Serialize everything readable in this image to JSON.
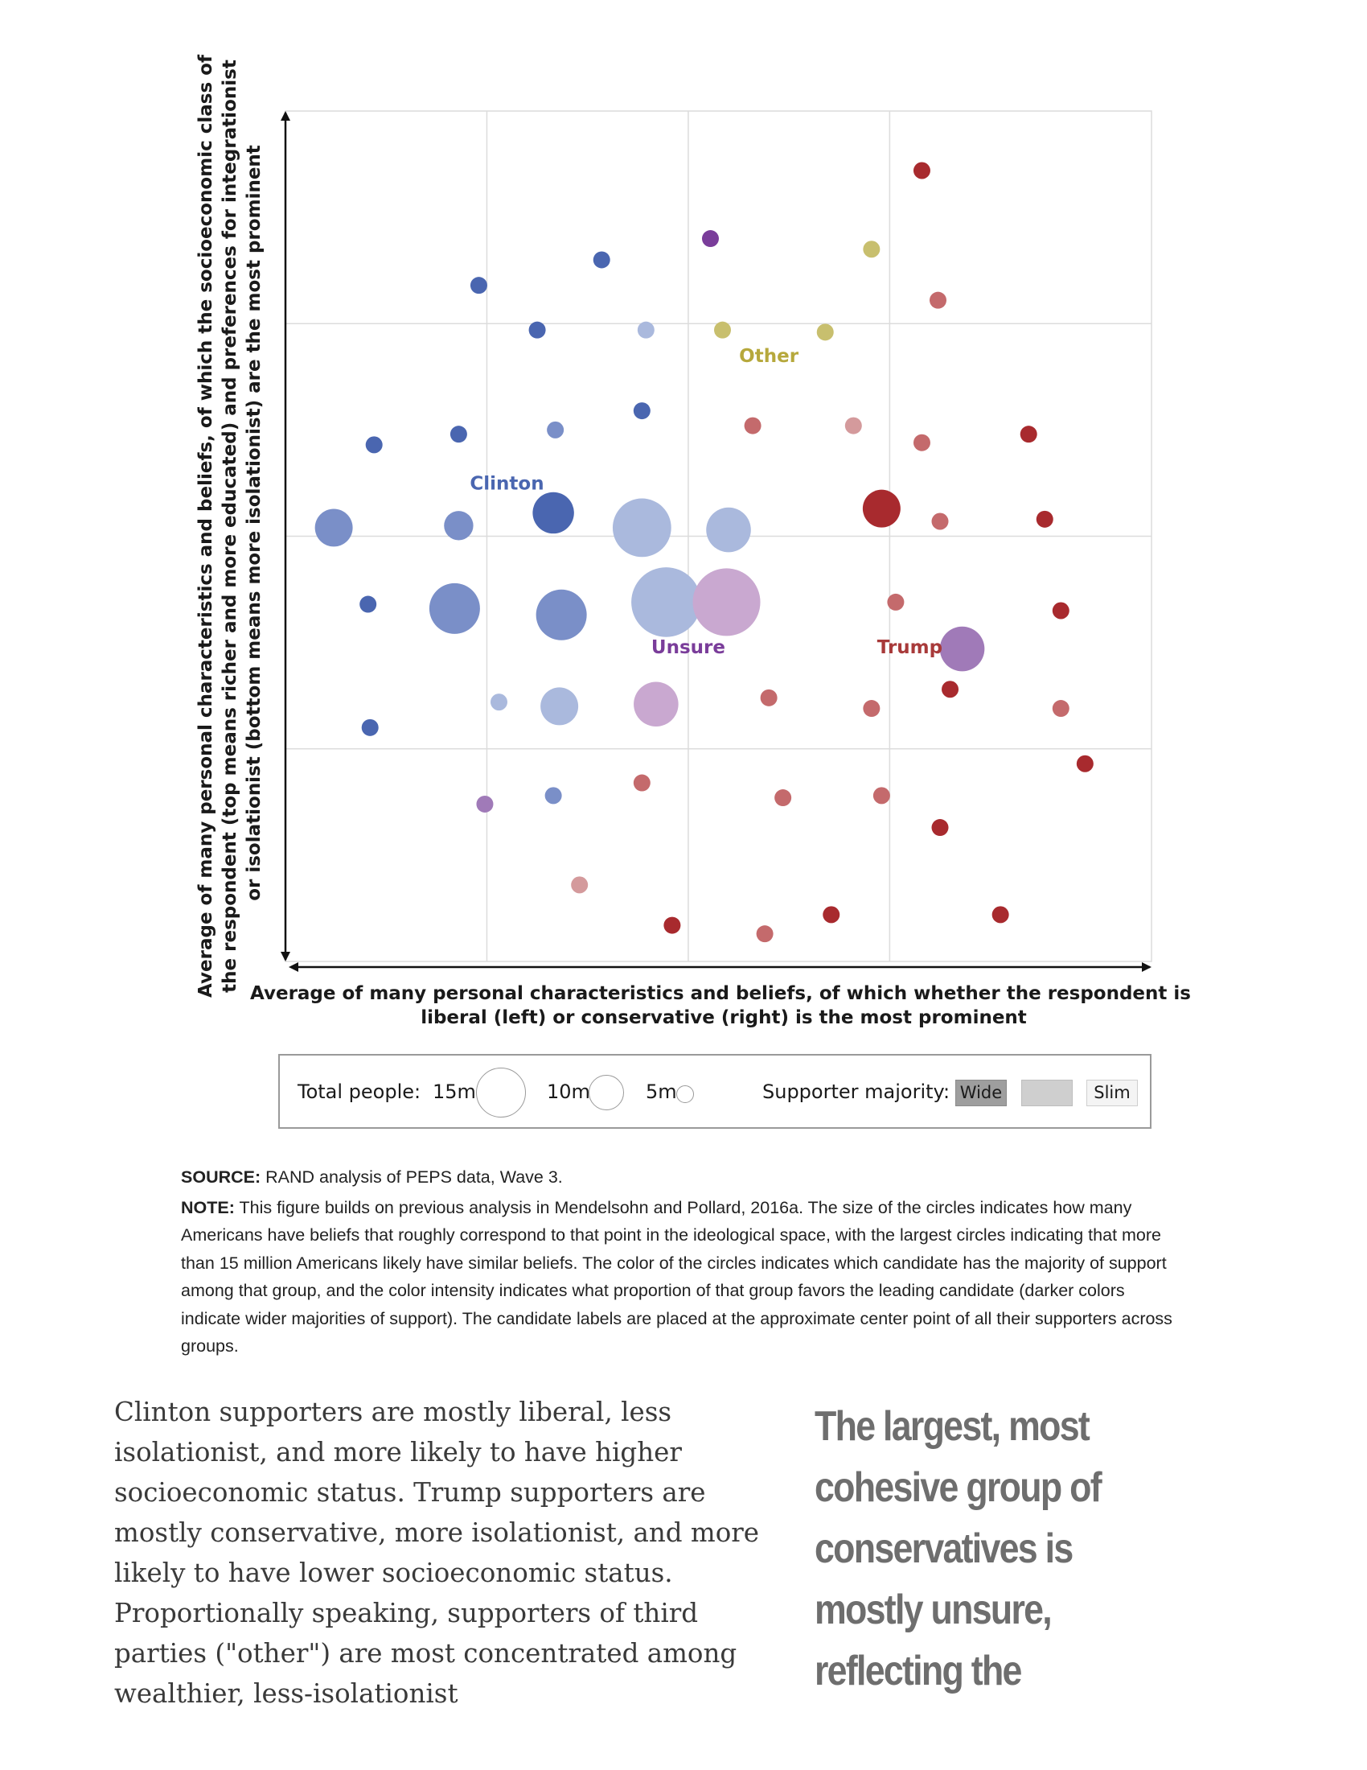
{
  "chart_data": {
    "type": "scatter",
    "xlabel": "Average of many personal characteristics and beliefs, of which whether the respondent is liberal (left) or conservative (right) is the most prominent",
    "xlabel_lines": [
      "Average of many personal characteristics and beliefs, of which whether the respondent is",
      "liberal (left) or conservative (right) is the most prominent"
    ],
    "ylabel": "Average of many personal characteristics and beliefs, of which the socioeconomic class of the respondent (top means richer and more educated) and preferences for integrationist or isolationist (bottom means more isolationist) are the most prominent",
    "ylabel_lines": [
      "Average of many personal characteristics and beliefs, of which the socioeconomic class of",
      "the respondent (top means richer and more educated) and preferences for integrationist",
      "or isolationist (bottom means more isolationist) are the most prominent"
    ],
    "xlim": [
      0,
      4.3
    ],
    "ylim": [
      0,
      4
    ],
    "grid": true,
    "candidate_labels": [
      {
        "text": "Clinton",
        "x": 1.1,
        "y": 2.22,
        "color": "#4a66b0"
      },
      {
        "text": "Other",
        "x": 2.4,
        "y": 2.82,
        "color": "#b6a83c"
      },
      {
        "text": "Unsure",
        "x": 2.0,
        "y": 1.45,
        "color": "#7a3d9a"
      },
      {
        "text": "Trump",
        "x": 3.1,
        "y": 1.45,
        "color": "#a83a3a"
      }
    ],
    "points": [
      {
        "x": 3.16,
        "y": 3.72,
        "size": 1,
        "group": "Trump",
        "majority": "wide"
      },
      {
        "x": 2.11,
        "y": 3.4,
        "size": 1,
        "group": "Unsure",
        "majority": "wide"
      },
      {
        "x": 2.91,
        "y": 3.35,
        "size": 1,
        "group": "Other",
        "majority": "medium"
      },
      {
        "x": 1.57,
        "y": 3.3,
        "size": 1,
        "group": "Clinton",
        "majority": "wide"
      },
      {
        "x": 0.96,
        "y": 3.18,
        "size": 1,
        "group": "Clinton",
        "majority": "wide"
      },
      {
        "x": 3.24,
        "y": 3.11,
        "size": 1,
        "group": "Trump",
        "majority": "medium"
      },
      {
        "x": 1.25,
        "y": 2.97,
        "size": 1,
        "group": "Clinton",
        "majority": "wide"
      },
      {
        "x": 1.79,
        "y": 2.97,
        "size": 1,
        "group": "Clinton",
        "majority": "slim"
      },
      {
        "x": 2.17,
        "y": 2.97,
        "size": 1,
        "group": "Other",
        "majority": "medium"
      },
      {
        "x": 2.68,
        "y": 2.96,
        "size": 1,
        "group": "Other",
        "majority": "medium"
      },
      {
        "x": 1.77,
        "y": 2.59,
        "size": 1,
        "group": "Clinton",
        "majority": "wide"
      },
      {
        "x": 2.32,
        "y": 2.52,
        "size": 1,
        "group": "Trump",
        "majority": "medium"
      },
      {
        "x": 2.82,
        "y": 2.52,
        "size": 1,
        "group": "Trump",
        "majority": "slim"
      },
      {
        "x": 0.86,
        "y": 2.48,
        "size": 1,
        "group": "Clinton",
        "majority": "wide"
      },
      {
        "x": 1.34,
        "y": 2.5,
        "size": 1,
        "group": "Clinton",
        "majority": "medium"
      },
      {
        "x": 3.69,
        "y": 2.48,
        "size": 1,
        "group": "Trump",
        "majority": "wide"
      },
      {
        "x": 0.44,
        "y": 2.43,
        "size": 1,
        "group": "Clinton",
        "majority": "wide"
      },
      {
        "x": 3.16,
        "y": 2.44,
        "size": 1,
        "group": "Trump",
        "majority": "medium"
      },
      {
        "x": 1.33,
        "y": 2.11,
        "size": 6,
        "group": "Clinton",
        "majority": "wide"
      },
      {
        "x": 2.96,
        "y": 2.13,
        "size": 5,
        "group": "Trump",
        "majority": "wide"
      },
      {
        "x": 0.86,
        "y": 2.05,
        "size": 3,
        "group": "Clinton",
        "majority": "medium"
      },
      {
        "x": 0.24,
        "y": 2.04,
        "size": 5,
        "group": "Clinton",
        "majority": "medium"
      },
      {
        "x": 1.77,
        "y": 2.04,
        "size": 12,
        "group": "Clinton",
        "majority": "slim"
      },
      {
        "x": 2.2,
        "y": 2.03,
        "size": 7,
        "group": "Clinton",
        "majority": "slim"
      },
      {
        "x": 3.25,
        "y": 2.07,
        "size": 1,
        "group": "Trump",
        "majority": "medium"
      },
      {
        "x": 3.77,
        "y": 2.08,
        "size": 1,
        "group": "Trump",
        "majority": "wide"
      },
      {
        "x": 0.41,
        "y": 1.68,
        "size": 1,
        "group": "Clinton",
        "majority": "wide"
      },
      {
        "x": 0.84,
        "y": 1.66,
        "size": 9,
        "group": "Clinton",
        "majority": "medium"
      },
      {
        "x": 1.37,
        "y": 1.63,
        "size": 9,
        "group": "Clinton",
        "majority": "medium"
      },
      {
        "x": 1.89,
        "y": 1.69,
        "size": 17,
        "group": "Clinton",
        "majority": "slim"
      },
      {
        "x": 2.19,
        "y": 1.69,
        "size": 16,
        "group": "Unsure",
        "majority": "slim"
      },
      {
        "x": 3.03,
        "y": 1.69,
        "size": 1,
        "group": "Trump",
        "majority": "medium"
      },
      {
        "x": 3.36,
        "y": 1.47,
        "size": 7,
        "group": "Unsure",
        "majority": "medium"
      },
      {
        "x": 3.85,
        "y": 1.65,
        "size": 1,
        "group": "Trump",
        "majority": "wide"
      },
      {
        "x": 1.06,
        "y": 1.22,
        "size": 1,
        "group": "Clinton",
        "majority": "slim"
      },
      {
        "x": 1.36,
        "y": 1.2,
        "size": 5,
        "group": "Clinton",
        "majority": "slim"
      },
      {
        "x": 1.84,
        "y": 1.21,
        "size": 7,
        "group": "Unsure",
        "majority": "slim"
      },
      {
        "x": 2.4,
        "y": 1.24,
        "size": 1,
        "group": "Trump",
        "majority": "medium"
      },
      {
        "x": 2.91,
        "y": 1.19,
        "size": 1,
        "group": "Trump",
        "majority": "medium"
      },
      {
        "x": 3.3,
        "y": 1.28,
        "size": 1,
        "group": "Trump",
        "majority": "wide"
      },
      {
        "x": 3.85,
        "y": 1.19,
        "size": 1,
        "group": "Trump",
        "majority": "medium"
      },
      {
        "x": 0.42,
        "y": 1.1,
        "size": 1,
        "group": "Clinton",
        "majority": "wide"
      },
      {
        "x": 3.97,
        "y": 0.93,
        "size": 1,
        "group": "Trump",
        "majority": "wide"
      },
      {
        "x": 1.77,
        "y": 0.84,
        "size": 1,
        "group": "Trump",
        "majority": "medium"
      },
      {
        "x": 1.33,
        "y": 0.78,
        "size": 1,
        "group": "Clinton",
        "majority": "medium"
      },
      {
        "x": 0.99,
        "y": 0.74,
        "size": 1,
        "group": "Unsure",
        "majority": "medium"
      },
      {
        "x": 2.47,
        "y": 0.77,
        "size": 1,
        "group": "Trump",
        "majority": "medium"
      },
      {
        "x": 2.96,
        "y": 0.78,
        "size": 1,
        "group": "Trump",
        "majority": "medium"
      },
      {
        "x": 3.25,
        "y": 0.63,
        "size": 1,
        "group": "Trump",
        "majority": "wide"
      },
      {
        "x": 1.46,
        "y": 0.36,
        "size": 1,
        "group": "Trump",
        "majority": "slim"
      },
      {
        "x": 1.92,
        "y": 0.17,
        "size": 1,
        "group": "Trump",
        "majority": "wide"
      },
      {
        "x": 2.71,
        "y": 0.22,
        "size": 1,
        "group": "Trump",
        "majority": "wide"
      },
      {
        "x": 3.55,
        "y": 0.22,
        "size": 1,
        "group": "Trump",
        "majority": "wide"
      },
      {
        "x": 2.38,
        "y": 0.13,
        "size": 1,
        "group": "Trump",
        "majority": "medium"
      }
    ],
    "colors": {
      "Clinton": {
        "wide": "#4a66b0",
        "medium": "#7a8fc8",
        "slim": "#aab9dd"
      },
      "Trump": {
        "wide": "#a82a2e",
        "medium": "#c46a6c",
        "slim": "#d49a9c"
      },
      "Unsure": {
        "wide": "#7a3d9a",
        "medium": "#a07ab8",
        "slim": "#c9a8d0"
      },
      "Other": {
        "wide": "#a89a2c",
        "medium": "#c8bf6e",
        "slim": "#ddd8a8"
      }
    },
    "legend": {
      "total_label": "Total people:",
      "sizes": [
        "15m",
        "10m",
        "5m"
      ],
      "majority_label": "Supporter majority:",
      "majority_levels": [
        "Wide",
        "",
        "Slim"
      ],
      "placement": "bottom"
    }
  },
  "notes": {
    "source_label": "SOURCE:",
    "source_text": "RAND analysis of PEPS data, Wave 3.",
    "note_label": "NOTE:",
    "note_text": "This figure builds on previous analysis in Mendelsohn and Pollard, 2016a. The size of the circles indicates how many Americans have beliefs that roughly correspond to that point in the ideological space, with the largest circles indicating that more than 15 million Americans likely have similar beliefs. The color of the circles indicates which candidate has the majority of support among that group, and the color intensity indicates what proportion of that group favors the leading candidate (darker colors indicate wider majorities of support). The candidate labels are placed at the approximate center point of all their supporters across groups."
  },
  "body_text": "Clinton supporters are mostly liberal, less isolationist, and more likely to have higher socioeconomic status. Trump supporters are mostly conservative, more isolationist, and more likely to have lower socioeconomic status. Proportionally speaking, supporters of third parties (\"other\") are most concentrated among wealthier, less-isolationist",
  "pull_quote": "The largest, most cohesive group of conservatives is mostly unsure, reflecting the"
}
